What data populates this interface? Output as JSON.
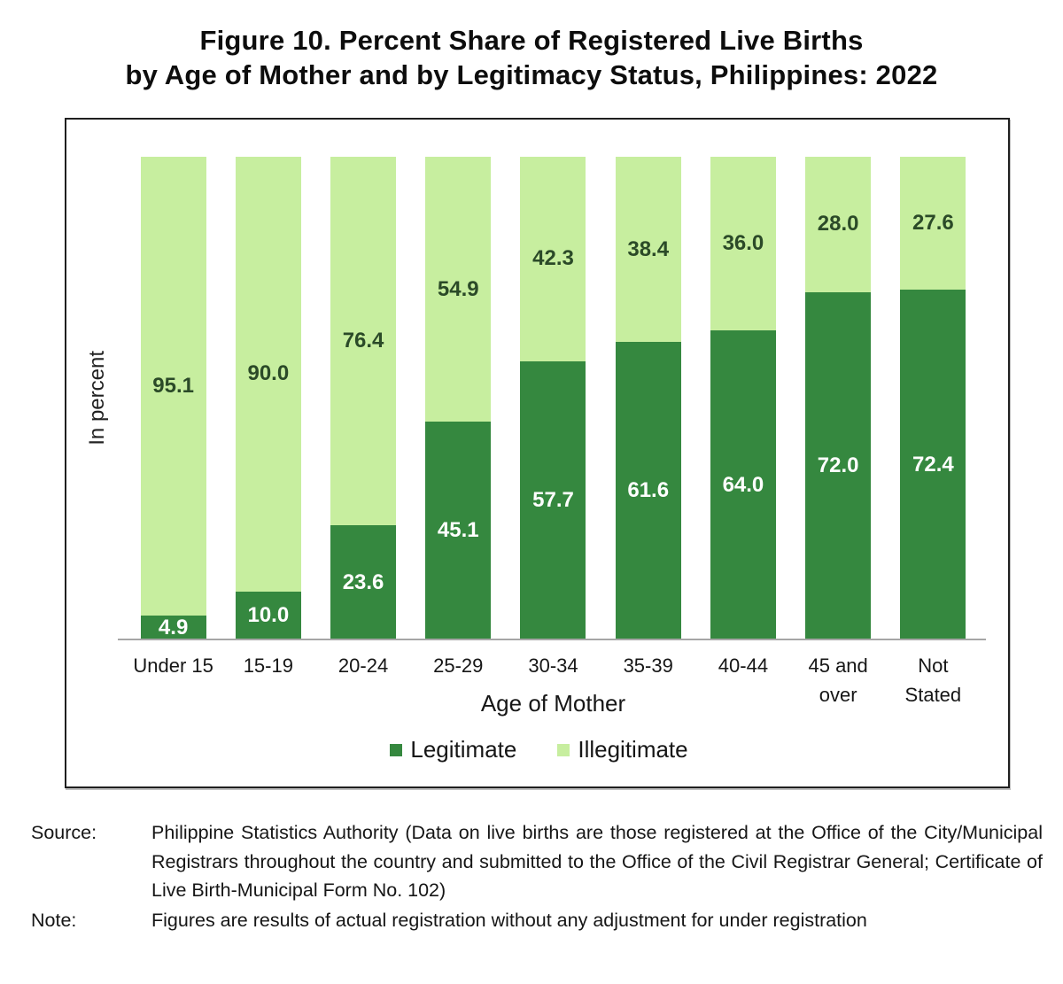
{
  "title": {
    "line1": "Figure 10. Percent Share of Registered Live Births",
    "line2": "by Age of Mother and by Legitimacy Status, Philippines: 2022"
  },
  "chart_data": {
    "type": "bar",
    "stacked": true,
    "title": "Figure 10. Percent Share of Registered Live Births by Age of Mother and by Legitimacy Status, Philippines: 2022",
    "categories": [
      "Under 15",
      "15-19",
      "20-24",
      "25-29",
      "30-34",
      "35-39",
      "40-44",
      "45 and over",
      "Not Stated"
    ],
    "category_label_lines": [
      [
        "Under 15"
      ],
      [
        "15-19"
      ],
      [
        "20-24"
      ],
      [
        "25-29"
      ],
      [
        "30-34"
      ],
      [
        "35-39"
      ],
      [
        "40-44"
      ],
      [
        "45 and",
        "over"
      ],
      [
        "Not",
        "Stated"
      ]
    ],
    "series": [
      {
        "name": "Legitimate",
        "color": "#35883F",
        "label_color": "#ffffff",
        "values": [
          4.9,
          10.0,
          23.6,
          45.1,
          57.7,
          61.6,
          64.0,
          72.0,
          72.4
        ],
        "value_labels": [
          "4.9",
          "10.0",
          "23.6",
          "45.1",
          "57.7",
          "61.6",
          "64.0",
          "72.0",
          "72.4"
        ]
      },
      {
        "name": "Illegitimate",
        "color": "#C7EE9F",
        "label_color": "#2B4A28",
        "values": [
          95.1,
          90.0,
          76.4,
          54.9,
          42.3,
          38.4,
          36.0,
          28.0,
          27.6
        ],
        "value_labels": [
          "95.1",
          "90.0",
          "76.4",
          "54.9",
          "42.3",
          "38.4",
          "36.0",
          "28.0",
          "27.6"
        ]
      }
    ],
    "xlabel": "Age of Mother",
    "ylabel": "In percent",
    "ylim": [
      0,
      100
    ],
    "grid": false,
    "legend_position": "bottom",
    "axis_line_color": "#a6a6a6"
  },
  "legend": {
    "items": [
      {
        "label": "Legitimate",
        "color": "#35883F"
      },
      {
        "label": "Illegitimate",
        "color": "#C7EE9F"
      }
    ]
  },
  "footer": {
    "source_label": "Source:",
    "source_text": "Philippine Statistics Authority (Data on live births are those registered at the Office of the City/Municipal Registrars throughout the country and submitted to the Office of the Civil Registrar General; Certificate of Live Birth-Municipal Form No. 102)",
    "note_label": "Note:",
    "note_text": "Figures are results of actual registration without any adjustment for under registration"
  }
}
